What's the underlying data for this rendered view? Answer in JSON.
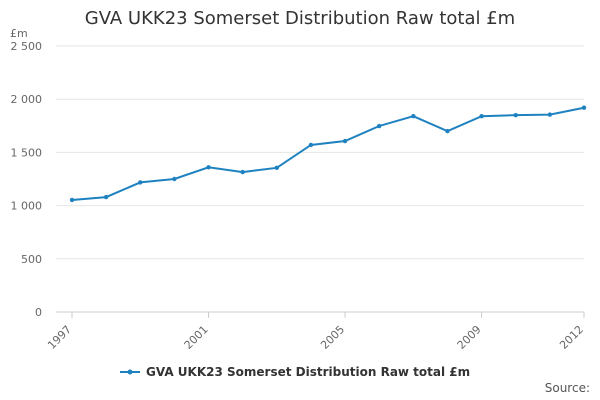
{
  "chart_data": {
    "type": "line",
    "title": "GVA UKK23 Somerset Distribution Raw total £m",
    "ylabel": "£m",
    "xlabel": "",
    "ylim": [
      0,
      2500
    ],
    "yticks": [
      0,
      500,
      1000,
      1500,
      2000,
      2500
    ],
    "ytick_labels": [
      "0",
      "500",
      "1 000",
      "1 500",
      "2 000",
      "2 500"
    ],
    "x": [
      1997,
      1998,
      1999,
      2000,
      2001,
      2002,
      2003,
      2004,
      2005,
      2006,
      2007,
      2008,
      2009,
      2010,
      2011,
      2012
    ],
    "xtick_labels": [
      "1997",
      "2001",
      "2005",
      "2009",
      "2012"
    ],
    "series": [
      {
        "name": "GVA UKK23 Somerset Distribution Raw total £m",
        "color": "#1f82c0",
        "values": [
          1053,
          1080,
          1218,
          1250,
          1360,
          1315,
          1355,
          1570,
          1607,
          1748,
          1840,
          1700,
          1840,
          1850,
          1855,
          1920
        ]
      }
    ],
    "grid": true,
    "legend": "bottom"
  },
  "source_label": "Source:"
}
